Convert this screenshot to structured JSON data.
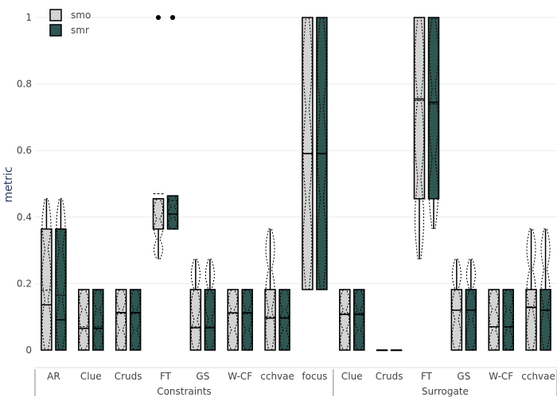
{
  "chart_data": {
    "type": "box",
    "ylabel": "metric",
    "xlabel": "",
    "ylim": [
      0,
      1
    ],
    "yticks": [
      0,
      0.2,
      0.4,
      0.6,
      0.8,
      1
    ],
    "ytick_labels": [
      "0",
      "0.2",
      "0.4",
      "0.6",
      "0.8",
      "1"
    ],
    "groups": [
      {
        "name": "Constraints",
        "categories": [
          "AR",
          "Clue",
          "Cruds",
          "FT",
          "GS",
          "W-CF",
          "cchvae",
          "focus"
        ]
      },
      {
        "name": "Surrogate",
        "categories": [
          "Clue",
          "Cruds",
          "FT",
          "GS",
          "W-CF",
          "cchvae"
        ]
      }
    ],
    "legend": {
      "placement": "top-left",
      "entries": [
        {
          "name": "smo",
          "color": "#d3d3d3"
        },
        {
          "name": "smr",
          "color": "#2f5652"
        }
      ]
    },
    "series": [
      {
        "name": "smo",
        "color": "#d3d3d3",
        "boxes": [
          {
            "q1": 0,
            "median": 0.136,
            "q3": 0.364,
            "mean": 0.18,
            "lower": 0,
            "upper": 0.455,
            "outliers": []
          },
          {
            "q1": 0,
            "median": 0.065,
            "q3": 0.182,
            "mean": 0.07,
            "lower": 0,
            "upper": 0.182,
            "outliers": []
          },
          {
            "q1": 0,
            "median": 0.113,
            "q3": 0.182,
            "mean": 0.11,
            "lower": 0,
            "upper": 0.182,
            "outliers": []
          },
          {
            "q1": 0.364,
            "median": 0.455,
            "q3": 0.455,
            "mean": 0.47,
            "lower": 0.273,
            "upper": 0.455,
            "outliers": [
              1,
              1
            ]
          },
          {
            "q1": 0,
            "median": 0.067,
            "q3": 0.182,
            "mean": 0.07,
            "lower": 0,
            "upper": 0.273,
            "outliers": []
          },
          {
            "q1": 0,
            "median": 0.112,
            "q3": 0.182,
            "mean": 0.11,
            "lower": 0,
            "upper": 0.182,
            "outliers": []
          },
          {
            "q1": 0,
            "median": 0.096,
            "q3": 0.182,
            "mean": 0.1,
            "lower": 0,
            "upper": 0.364,
            "outliers": []
          },
          {
            "q1": 0.182,
            "median": 0.591,
            "q3": 1,
            "mean": 0.59,
            "lower": 0.182,
            "upper": 1,
            "outliers": []
          },
          {
            "q1": 0,
            "median": 0.107,
            "q3": 0.182,
            "mean": 0.11,
            "lower": 0,
            "upper": 0.182,
            "outliers": []
          },
          {
            "q1": 0,
            "median": 0,
            "q3": 0,
            "mean": 0,
            "lower": 0,
            "upper": 0,
            "outliers": []
          },
          {
            "q1": 0.455,
            "median": 0.755,
            "q3": 1,
            "mean": 0.75,
            "lower": 0.273,
            "upper": 1,
            "outliers": []
          },
          {
            "q1": 0,
            "median": 0.12,
            "q3": 0.182,
            "mean": 0.12,
            "lower": 0,
            "upper": 0.273,
            "outliers": []
          },
          {
            "q1": 0,
            "median": 0.07,
            "q3": 0.182,
            "mean": 0.07,
            "lower": 0,
            "upper": 0.182,
            "outliers": []
          },
          {
            "q1": 0,
            "median": 0.128,
            "q3": 0.182,
            "mean": 0.13,
            "lower": 0,
            "upper": 0.364,
            "outliers": []
          }
        ]
      },
      {
        "name": "smr",
        "color": "#2f5652",
        "boxes": [
          {
            "q1": 0,
            "median": 0.091,
            "q3": 0.364,
            "mean": 0.165,
            "lower": 0,
            "upper": 0.455,
            "outliers": []
          },
          {
            "q1": 0,
            "median": 0.065,
            "q3": 0.182,
            "mean": 0.07,
            "lower": 0,
            "upper": 0.182,
            "outliers": []
          },
          {
            "q1": 0,
            "median": 0.113,
            "q3": 0.182,
            "mean": 0.11,
            "lower": 0,
            "upper": 0.182,
            "outliers": []
          },
          {
            "q1": 0.364,
            "median": 0.409,
            "q3": 0.464,
            "mean": 0.45,
            "lower": 0.364,
            "upper": 0.464,
            "outliers": [
              1,
              1
            ]
          },
          {
            "q1": 0,
            "median": 0.067,
            "q3": 0.182,
            "mean": 0.07,
            "lower": 0,
            "upper": 0.273,
            "outliers": []
          },
          {
            "q1": 0,
            "median": 0.112,
            "q3": 0.182,
            "mean": 0.11,
            "lower": 0,
            "upper": 0.182,
            "outliers": []
          },
          {
            "q1": 0,
            "median": 0.096,
            "q3": 0.182,
            "mean": 0.1,
            "lower": 0,
            "upper": 0.182,
            "outliers": []
          },
          {
            "q1": 0.182,
            "median": 0.591,
            "q3": 1,
            "mean": 0.59,
            "lower": 0.182,
            "upper": 1,
            "outliers": []
          },
          {
            "q1": 0,
            "median": 0.107,
            "q3": 0.182,
            "mean": 0.11,
            "lower": 0,
            "upper": 0.182,
            "outliers": []
          },
          {
            "q1": 0,
            "median": 0,
            "q3": 0,
            "mean": 0,
            "lower": 0,
            "upper": 0,
            "outliers": []
          },
          {
            "q1": 0.455,
            "median": 0.745,
            "q3": 1,
            "mean": 0.74,
            "lower": 0.364,
            "upper": 1,
            "outliers": []
          },
          {
            "q1": 0,
            "median": 0.12,
            "q3": 0.182,
            "mean": 0.12,
            "lower": 0,
            "upper": 0.273,
            "outliers": []
          },
          {
            "q1": 0,
            "median": 0.07,
            "q3": 0.182,
            "mean": 0.07,
            "lower": 0,
            "upper": 0.182,
            "outliers": []
          },
          {
            "q1": 0,
            "median": 0.12,
            "q3": 0.182,
            "mean": 0.12,
            "lower": 0,
            "upper": 0.364,
            "outliers": []
          }
        ]
      }
    ]
  }
}
